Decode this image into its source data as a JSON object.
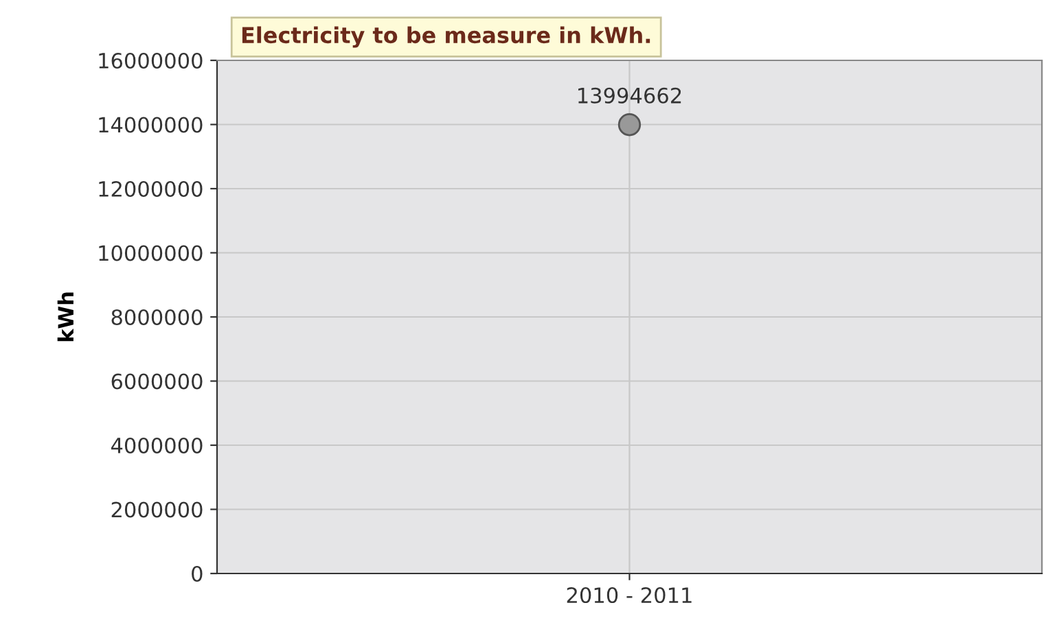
{
  "chart_data": {
    "type": "line",
    "title": "Electricity to be measure in kWh.",
    "ylabel": "kWh",
    "categories": [
      "2010 - 2011"
    ],
    "series": [
      {
        "color": "#999999",
        "values": [
          13994662
        ]
      }
    ],
    "ylim": [
      0,
      16000000
    ],
    "yticks": [
      0,
      2000000,
      4000000,
      6000000,
      8000000,
      10000000,
      12000000,
      14000000,
      16000000
    ],
    "grid": true,
    "marker": "circle",
    "data_labels": true
  }
}
